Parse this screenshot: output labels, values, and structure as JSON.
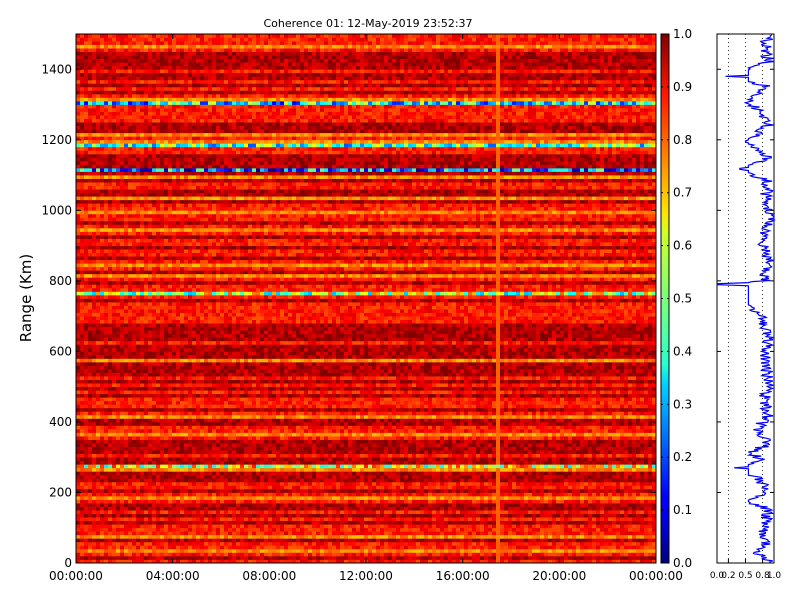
{
  "chart_data": [
    {
      "type": "heatmap",
      "title": "Coherence 01: 12-May-2019 23:52:37",
      "xlabel": "",
      "ylabel": "Range (Km)",
      "x_tick_labels": [
        "00:00:00",
        "04:00:00",
        "08:00:00",
        "12:00:00",
        "16:00:00",
        "20:00:00",
        "00:00:00"
      ],
      "y_tick_labels": [
        "0",
        "200",
        "400",
        "600",
        "800",
        "1000",
        "1200",
        "1400"
      ],
      "ylim": [
        0,
        1500
      ],
      "colorbar": {
        "colormap": "jet",
        "range": [
          0.0,
          1.0
        ],
        "tick_labels": [
          "0.0",
          "0.1",
          "0.2",
          "0.3",
          "0.4",
          "0.5",
          "0.6",
          "0.7",
          "0.8",
          "0.9",
          "1.0"
        ]
      },
      "low_coherence_bands_km": [
        {
          "range_km": 1305,
          "value": 0.35
        },
        {
          "range_km": 1185,
          "value": 0.45
        },
        {
          "range_km": 1117,
          "value": 0.25
        },
        {
          "range_km": 760,
          "value": 0.55
        },
        {
          "range_km": 275,
          "value": 0.6
        }
      ],
      "typical_value": 0.85,
      "grid": true
    },
    {
      "type": "line",
      "title": "",
      "xlabel": "",
      "ylabel": "",
      "xlim": [
        0.0,
        1.0
      ],
      "ylim": [
        0,
        1500
      ],
      "x_tick_labels": [
        "0.0",
        "0.2",
        "0.5",
        "0.8",
        "1.0"
      ],
      "grid": true,
      "series": [
        {
          "color": "#0000ff",
          "points": [
            [
              0.85,
              10
            ],
            [
              0.7,
              30
            ],
            [
              0.9,
              60
            ],
            [
              0.8,
              100
            ],
            [
              0.92,
              150
            ],
            [
              0.55,
              175
            ],
            [
              0.88,
              200
            ],
            [
              0.75,
              240
            ],
            [
              0.3,
              270
            ],
            [
              0.8,
              290
            ],
            [
              0.6,
              310
            ],
            [
              0.9,
              340
            ],
            [
              0.7,
              380
            ],
            [
              0.92,
              420
            ],
            [
              0.82,
              460
            ],
            [
              0.9,
              520
            ],
            [
              0.85,
              580
            ],
            [
              0.9,
              640
            ],
            [
              0.8,
              700
            ],
            [
              0.02,
              790
            ],
            [
              0.85,
              800
            ],
            [
              0.9,
              860
            ],
            [
              0.8,
              920
            ],
            [
              0.92,
              980
            ],
            [
              0.85,
              1040
            ],
            [
              0.9,
              1080
            ],
            [
              0.4,
              1117
            ],
            [
              0.88,
              1150
            ],
            [
              0.6,
              1180
            ],
            [
              0.5,
              1195
            ],
            [
              0.9,
              1240
            ],
            [
              0.7,
              1290
            ],
            [
              0.5,
              1305
            ],
            [
              0.9,
              1350
            ],
            [
              0.15,
              1380
            ],
            [
              0.9,
              1420
            ],
            [
              0.85,
              1470
            ],
            [
              0.9,
              1495
            ]
          ]
        }
      ]
    }
  ]
}
